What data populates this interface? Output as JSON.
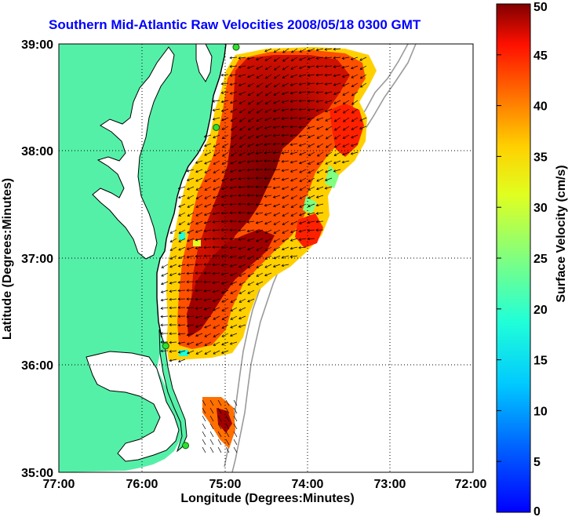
{
  "title": "Southern Mid-Atlantic Raw Velocities 2008/05/18 0300 GMT",
  "xlabel": "Longitude (Degrees:Minutes)",
  "ylabel": "Latitude (Degrees:Minutes)",
  "colorbar_label": "Surface Velocity (cm/s)",
  "x_ticks": [
    "77:00",
    "76:00",
    "75:00",
    "74:00",
    "73:00",
    "72:00"
  ],
  "y_ticks": [
    "39:00",
    "38:00",
    "37:00",
    "36:00",
    "35:00"
  ],
  "colorbar_ticks": [
    "50",
    "45",
    "40",
    "35",
    "30",
    "25",
    "20",
    "15",
    "10",
    "5",
    "0"
  ],
  "colors": {
    "land": "#55f0a8",
    "coast": "#000000",
    "grid": "#000000",
    "bathymetry": "#9a9a9a",
    "title": "#0000ff",
    "station": "#33dd33"
  },
  "chart_data": {
    "type": "map",
    "xlim": [
      -77,
      -72
    ],
    "ylim": [
      35,
      39
    ],
    "clim": [
      0,
      50
    ],
    "colormap": "jet",
    "stations": [
      {
        "lon": -74.86,
        "lat": 38.97
      },
      {
        "lon": -75.1,
        "lat": 38.22
      },
      {
        "lon": -75.71,
        "lat": 36.18
      },
      {
        "lon": -75.47,
        "lat": 35.25
      }
    ]
  }
}
